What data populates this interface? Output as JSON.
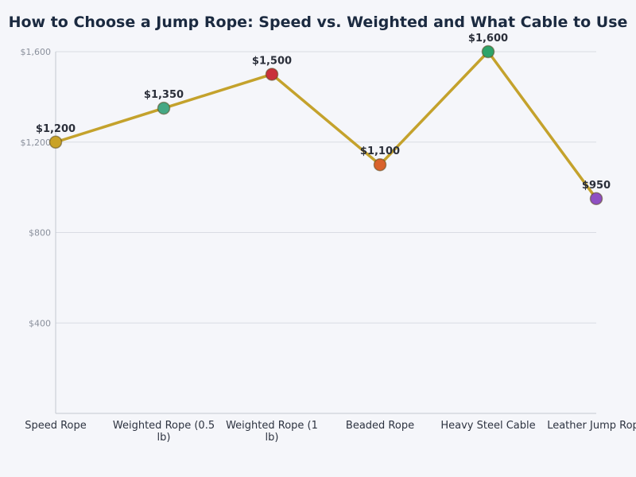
{
  "chart_data": {
    "type": "line",
    "title": "How to Choose a Jump Rope: Speed vs. Weighted and What Cable to Use",
    "xlabel": "",
    "ylabel": "",
    "categories": [
      [
        "Speed Rope"
      ],
      [
        "Weighted Rope (0.5",
        "lb)"
      ],
      [
        "Weighted Rope (1",
        "lb)"
      ],
      [
        "Beaded Rope"
      ],
      [
        "Heavy Steel Cable"
      ],
      [
        "Leather Jump Rope"
      ]
    ],
    "values": [
      1200,
      1350,
      1500,
      1100,
      1600,
      950
    ],
    "data_labels": [
      "$1,200",
      "$1,350",
      "$1,500",
      "$1,100",
      "$1,600",
      "$950"
    ],
    "point_colors": [
      "#c9a227",
      "#45a884",
      "#c9303a",
      "#d9622b",
      "#2ea36a",
      "#8e4fc2"
    ],
    "line_color": "#c4a22c",
    "ylim": [
      0,
      1600
    ],
    "yticks": [
      400,
      800,
      1200,
      1600
    ],
    "ytick_labels": [
      "$400",
      "$800",
      "$1,200",
      "$1,600"
    ],
    "grid": true,
    "legend": "none"
  }
}
